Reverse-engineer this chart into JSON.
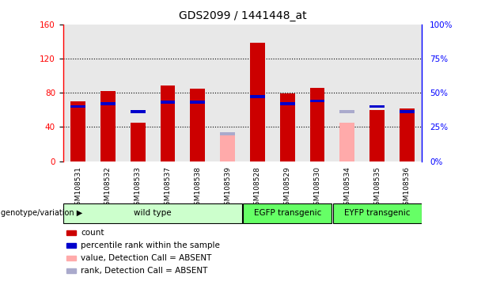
{
  "title": "GDS2099 / 1441448_at",
  "samples": [
    "GSM108531",
    "GSM108532",
    "GSM108533",
    "GSM108537",
    "GSM108538",
    "GSM108539",
    "GSM108528",
    "GSM108529",
    "GSM108530",
    "GSM108534",
    "GSM108535",
    "GSM108536"
  ],
  "count_values": [
    70,
    82,
    45,
    88,
    85,
    0,
    138,
    79,
    86,
    0,
    60,
    62
  ],
  "rank_values": [
    40,
    42,
    36,
    43,
    43,
    0,
    47,
    42,
    44,
    0,
    40,
    36
  ],
  "absent_value_values": [
    0,
    0,
    0,
    0,
    0,
    30,
    0,
    0,
    0,
    45,
    0,
    0
  ],
  "absent_rank_values": [
    0,
    0,
    0,
    0,
    0,
    20,
    0,
    0,
    0,
    36,
    0,
    0
  ],
  "groups": [
    {
      "label": "wild type",
      "start": 0,
      "end": 6,
      "color": "#ccffcc"
    },
    {
      "label": "EGFP transgenic",
      "start": 6,
      "end": 9,
      "color": "#66ff66"
    },
    {
      "label": "EYFP transgenic",
      "start": 9,
      "end": 12,
      "color": "#66ff66"
    }
  ],
  "ylim_left": [
    0,
    160
  ],
  "ylim_right": [
    0,
    100
  ],
  "yticks_left": [
    0,
    40,
    80,
    120,
    160
  ],
  "yticks_right": [
    0,
    25,
    50,
    75,
    100
  ],
  "ytick_labels_left": [
    "0",
    "40",
    "80",
    "120",
    "160"
  ],
  "ytick_labels_right": [
    "0%",
    "25%",
    "50%",
    "75%",
    "100%"
  ],
  "bar_width": 0.5,
  "count_color": "#cc0000",
  "rank_color": "#0000cc",
  "absent_value_color": "#ffaaaa",
  "absent_rank_color": "#aaaacc",
  "bg_color": "#e8e8e8",
  "group_label": "genotype/variation",
  "legend_items": [
    {
      "label": "count",
      "color": "#cc0000"
    },
    {
      "label": "percentile rank within the sample",
      "color": "#0000cc"
    },
    {
      "label": "value, Detection Call = ABSENT",
      "color": "#ffaaaa"
    },
    {
      "label": "rank, Detection Call = ABSENT",
      "color": "#aaaacc"
    }
  ]
}
